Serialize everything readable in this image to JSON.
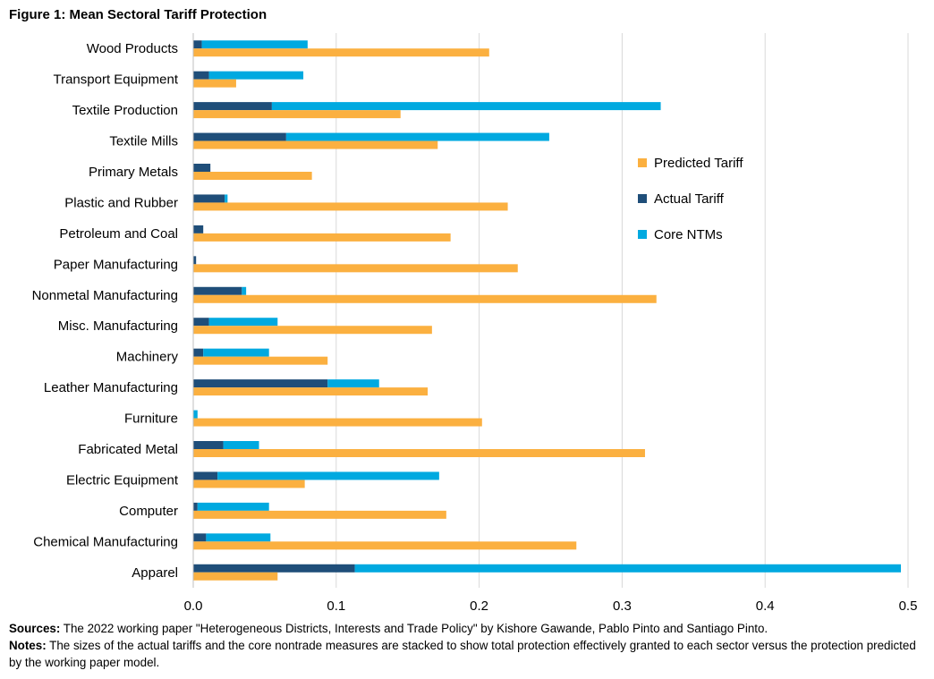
{
  "figure_title": "Figure 1: Mean Sectoral Tariff Protection",
  "footer": {
    "sources_label": "Sources:",
    "sources_text": " The 2022  working paper \"Heterogeneous Districts, Interests and Trade Policy\" by Kishore Gawande, Pablo Pinto and Santiago Pinto.",
    "notes_label": "Notes:",
    "notes_text": " The sizes of the actual tariffs and the core nontrade measures are stacked to show total protection effectively granted to each sector versus the protection predicted by the working paper model."
  },
  "colors": {
    "predicted": "#FBB040",
    "actual": "#1F4E79",
    "ntm": "#00A9E0",
    "grid": "#D9D9D9",
    "axis": "#BFBFBF"
  },
  "chart_data": {
    "type": "bar",
    "orientation": "horizontal",
    "title": "",
    "xlabel": "",
    "ylabel": "",
    "xlim": [
      0,
      0.5
    ],
    "x_ticks": [
      "0.0",
      "0.1",
      "0.2",
      "0.3",
      "0.4",
      "0.5"
    ],
    "grid": "vertical",
    "legend_position": "right",
    "categories": [
      "Wood Products",
      "Transport Equipment",
      "Textile Production",
      "Textile Mills",
      "Primary Metals",
      "Plastic and Rubber",
      "Petroleum and Coal",
      "Paper Manufacturing",
      "Nonmetal Manufacturing",
      "Misc. Manufacturing",
      "Machinery",
      "Leather Manufacturing",
      "Furniture",
      "Fabricated Metal",
      "Electric Equipment",
      "Computer",
      "Chemical Manufacturing",
      "Apparel"
    ],
    "series": [
      {
        "name": "Predicted Tariff",
        "values": [
          0.207,
          0.03,
          0.145,
          0.171,
          0.083,
          0.22,
          0.18,
          0.227,
          0.324,
          0.167,
          0.094,
          0.164,
          0.202,
          0.316,
          0.078,
          0.177,
          0.268,
          0.059
        ]
      },
      {
        "name": "Actual Tariff",
        "values": [
          0.006,
          0.011,
          0.055,
          0.065,
          0.012,
          0.022,
          0.007,
          0.002,
          0.034,
          0.011,
          0.007,
          0.094,
          0.0,
          0.021,
          0.017,
          0.003,
          0.009,
          0.113
        ]
      },
      {
        "name": "Core NTMs",
        "values": [
          0.074,
          0.066,
          0.272,
          0.184,
          0.0,
          0.002,
          0.0,
          0.0,
          0.003,
          0.048,
          0.046,
          0.036,
          0.003,
          0.025,
          0.155,
          0.05,
          0.045,
          0.382
        ]
      }
    ],
    "legend": [
      "Predicted Tariff",
      "Actual Tariff",
      "Core NTMs"
    ],
    "stacked_series": [
      "Actual Tariff",
      "Core NTMs"
    ]
  }
}
